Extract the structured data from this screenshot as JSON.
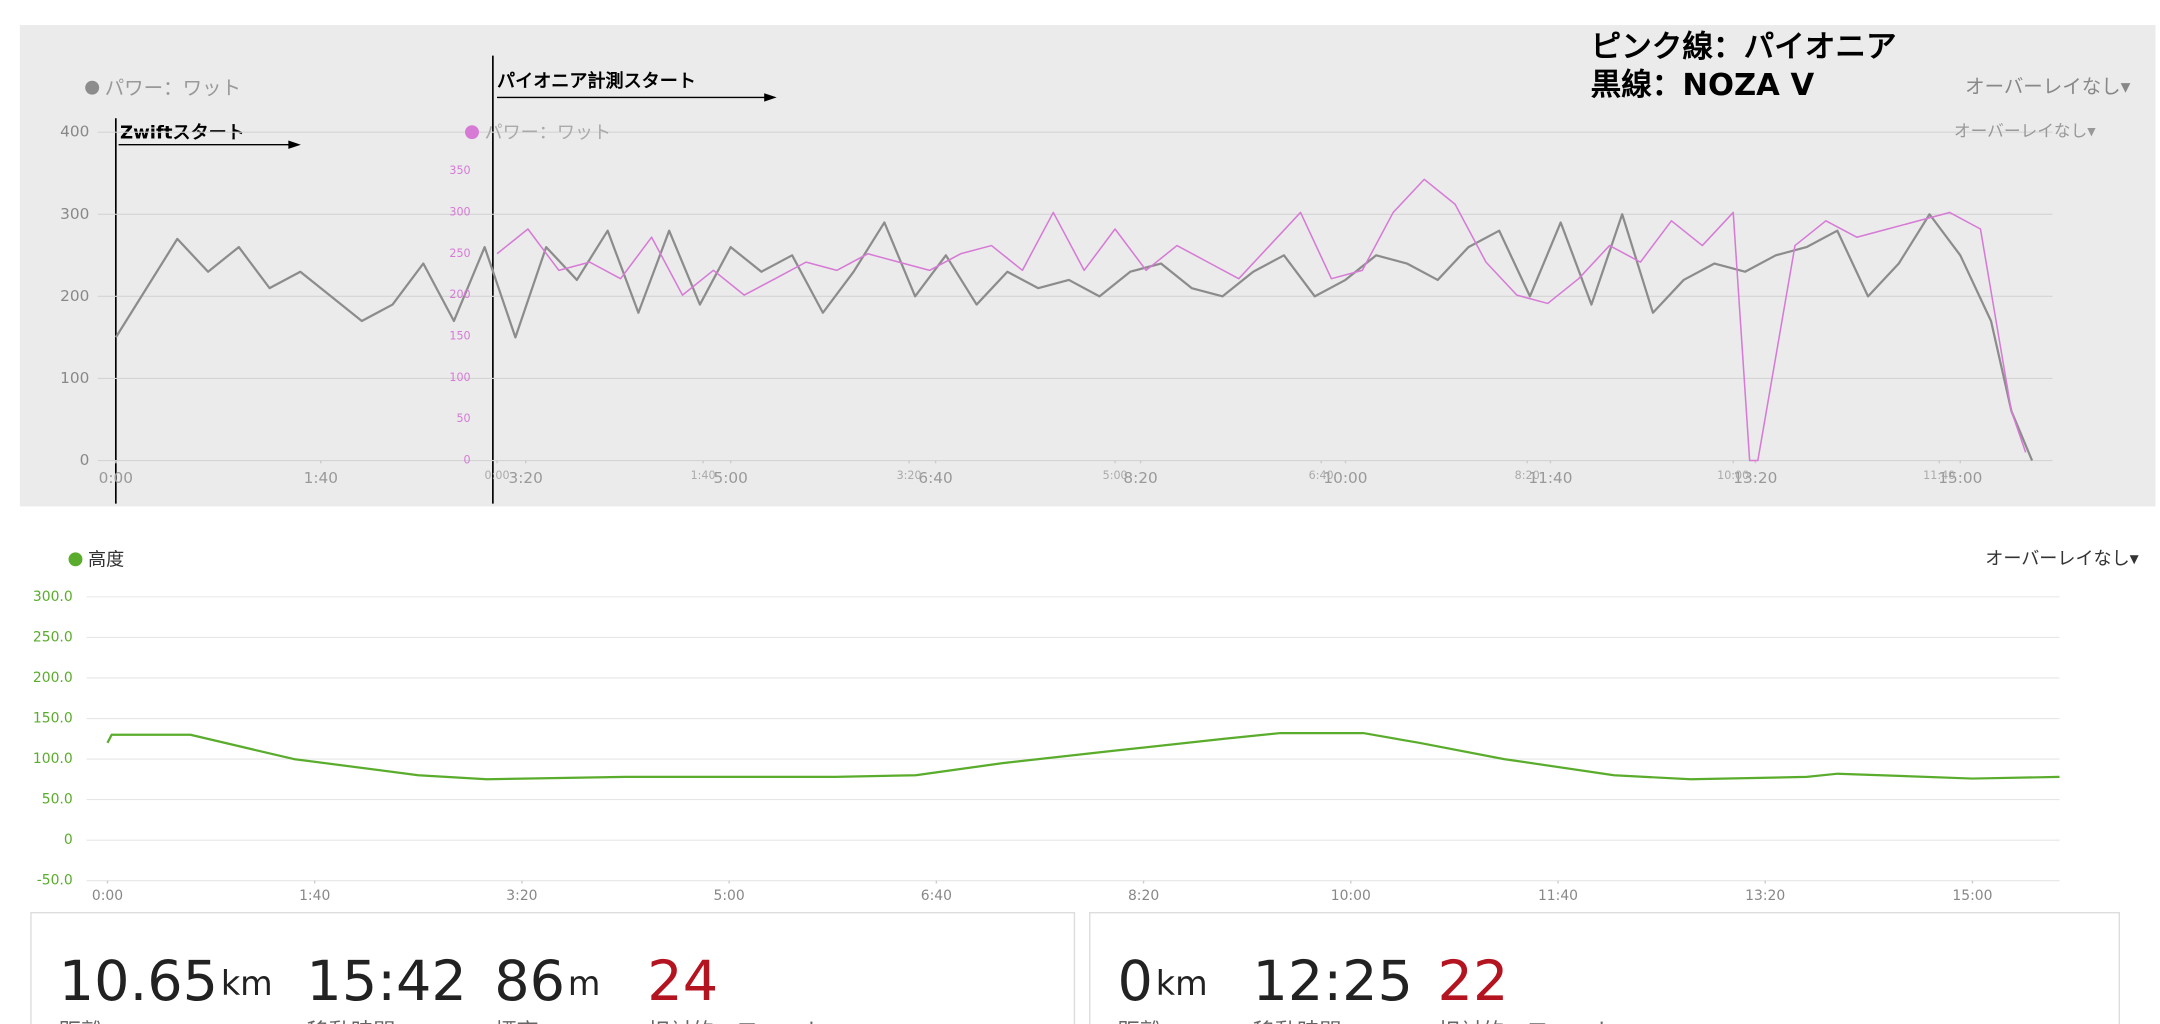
{
  "chart_data": [
    {
      "type": "line",
      "xlim": [
        0,
        945
      ],
      "ylim": [
        0,
        400
      ],
      "yticks": [
        0,
        100,
        200,
        300,
        400
      ],
      "grid": true,
      "overlay_menu": "オーバーレイなし▾",
      "xticks": [
        {
          "value": 0,
          "label": "0:00"
        },
        {
          "value": 100,
          "label": "1:40"
        },
        {
          "value": 200,
          "label": "3:20"
        },
        {
          "value": 300,
          "label": "5:00"
        },
        {
          "value": 400,
          "label": "6:40"
        },
        {
          "value": 500,
          "label": "8:20"
        },
        {
          "value": 600,
          "label": "10:00"
        },
        {
          "value": 700,
          "label": "11:40"
        },
        {
          "value": 800,
          "label": "13:20"
        },
        {
          "value": 900,
          "label": "15:00"
        }
      ],
      "series": [
        {
          "name": "パワー：ワット",
          "color": "#8c8c8c",
          "x": [
            0,
            15,
            30,
            45,
            60,
            75,
            90,
            105,
            120,
            135,
            150,
            165,
            180,
            195,
            210,
            225,
            240,
            255,
            270,
            285,
            300,
            315,
            330,
            345,
            360,
            375,
            390,
            405,
            420,
            435,
            450,
            465,
            480,
            495,
            510,
            525,
            540,
            555,
            570,
            585,
            600,
            615,
            630,
            645,
            660,
            675,
            690,
            705,
            720,
            735,
            750,
            765,
            780,
            795,
            810,
            825,
            840,
            855,
            870,
            885,
            900,
            915,
            925,
            935
          ],
          "values": [
            150,
            210,
            270,
            230,
            260,
            210,
            230,
            200,
            170,
            190,
            240,
            170,
            260,
            150,
            260,
            220,
            280,
            180,
            280,
            190,
            260,
            230,
            250,
            180,
            230,
            290,
            200,
            250,
            190,
            230,
            210,
            220,
            200,
            230,
            240,
            210,
            200,
            230,
            250,
            200,
            220,
            250,
            240,
            220,
            260,
            280,
            200,
            290,
            190,
            300,
            180,
            220,
            240,
            230,
            250,
            260,
            280,
            200,
            240,
            300,
            250,
            170,
            60,
            0
          ]
        }
      ]
    },
    {
      "type": "line",
      "xlim": [
        0,
        755
      ],
      "ylim": [
        0,
        350
      ],
      "yticks": [
        0,
        50,
        100,
        150,
        200,
        250,
        300,
        350
      ],
      "grid": false,
      "overlay_menu": "オーバーレイなし▾",
      "xticks": [
        {
          "value": 0,
          "label": "0:00"
        },
        {
          "value": 100,
          "label": "1:40"
        },
        {
          "value": 200,
          "label": "3:20"
        },
        {
          "value": 300,
          "label": "5:00"
        },
        {
          "value": 400,
          "label": "6:40"
        },
        {
          "value": 500,
          "label": "8:20"
        },
        {
          "value": 600,
          "label": "10:00"
        },
        {
          "value": 700,
          "label": "11:40"
        }
      ],
      "series": [
        {
          "name": "パワー：ワット",
          "color": "#d67ad6",
          "x": [
            0,
            15,
            30,
            45,
            60,
            75,
            90,
            105,
            120,
            135,
            150,
            165,
            180,
            195,
            210,
            225,
            240,
            255,
            270,
            285,
            300,
            315,
            330,
            345,
            360,
            375,
            390,
            405,
            420,
            435,
            450,
            465,
            480,
            495,
            510,
            525,
            540,
            555,
            570,
            585,
            600,
            608,
            612,
            630,
            645,
            660,
            675,
            690,
            705,
            720,
            735,
            742
          ],
          "values": [
            250,
            280,
            230,
            240,
            220,
            270,
            200,
            230,
            200,
            220,
            240,
            230,
            250,
            240,
            230,
            250,
            260,
            230,
            300,
            230,
            280,
            230,
            260,
            240,
            220,
            260,
            300,
            220,
            230,
            300,
            340,
            310,
            240,
            200,
            190,
            220,
            260,
            240,
            290,
            260,
            300,
            0,
            0,
            260,
            290,
            270,
            280,
            290,
            300,
            280,
            60,
            10
          ]
        }
      ]
    },
    {
      "type": "line",
      "xlim": [
        0,
        942
      ],
      "ylim": [
        -50,
        300
      ],
      "grid": true,
      "overlay_menu": "オーバーレイなし▾",
      "yticks": [
        {
          "value": -50,
          "label": "-50.0"
        },
        0,
        {
          "value": 50,
          "label": "50.0"
        },
        {
          "value": 100,
          "label": "100.0"
        },
        {
          "value": 150,
          "label": "150.0"
        },
        {
          "value": 200,
          "label": "200.0"
        },
        {
          "value": 250,
          "label": "250.0"
        },
        {
          "value": 300,
          "label": "300.0"
        }
      ],
      "xticks": [
        {
          "value": 0,
          "label": "0:00"
        },
        {
          "value": 100,
          "label": "1:40"
        },
        {
          "value": 200,
          "label": "3:20"
        },
        {
          "value": 300,
          "label": "5:00"
        },
        {
          "value": 400,
          "label": "6:40"
        },
        {
          "value": 500,
          "label": "8:20"
        },
        {
          "value": 600,
          "label": "10:00"
        },
        {
          "value": 700,
          "label": "11:40"
        },
        {
          "value": 800,
          "label": "13:20"
        },
        {
          "value": 900,
          "label": "15:00"
        }
      ],
      "series": [
        {
          "name": "高度",
          "color": "#5aac2c",
          "x": [
            0,
            2,
            40,
            90,
            150,
            183,
            250,
            351,
            390,
            432,
            485,
            539,
            566,
            606,
            633,
            674,
            727,
            764,
            820,
            835,
            900,
            942
          ],
          "values": [
            120,
            130,
            130,
            100,
            80,
            75,
            78,
            78,
            80,
            95,
            110,
            125,
            132,
            132,
            120,
            100,
            80,
            75,
            78,
            82,
            76,
            78
          ]
        }
      ]
    }
  ],
  "annotations": {
    "note_pink": "ピンク線：パイオニア",
    "note_black": "黒線：NOZA V",
    "pioneer_start": "パイオニア計測スタート",
    "zwift_start": "Zwiftスタート"
  },
  "stats": [
    [
      {
        "value": "10.65",
        "unit": "km",
        "label": "距離"
      },
      {
        "value": "15:42",
        "label": "移動時間"
      },
      {
        "value": "86",
        "unit": "m",
        "label": "標高"
      },
      {
        "value": "24",
        "label": "相対的エフォート"
      }
    ],
    [
      {
        "value": "0",
        "unit": "km",
        "label": "距離"
      },
      {
        "value": "12:25",
        "label": "移動時間"
      },
      {
        "value": "22",
        "label": "相対的エフォート"
      }
    ]
  ]
}
